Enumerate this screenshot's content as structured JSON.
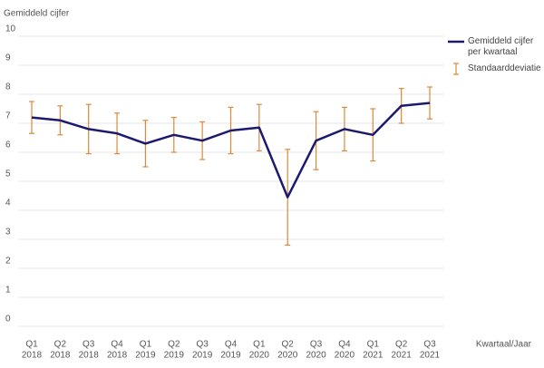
{
  "chart_data": {
    "type": "line",
    "y_label": "Gemiddeld cijfer",
    "x_label": "Kwartaal/Jaar",
    "categories": [
      [
        "Q1",
        "2018"
      ],
      [
        "Q2",
        "2018"
      ],
      [
        "Q3",
        "2018"
      ],
      [
        "Q4",
        "2018"
      ],
      [
        "Q1",
        "2019"
      ],
      [
        "Q2",
        "2019"
      ],
      [
        "Q3",
        "2019"
      ],
      [
        "Q4",
        "2019"
      ],
      [
        "Q1",
        "2020"
      ],
      [
        "Q2",
        "2020"
      ],
      [
        "Q3",
        "2020"
      ],
      [
        "Q4",
        "2020"
      ],
      [
        "Q1",
        "2021"
      ],
      [
        "Q2",
        "2021"
      ],
      [
        "Q3",
        "2021"
      ]
    ],
    "series": [
      {
        "name": "Gemiddeld cijfer per kwartaal",
        "color": "#1c1a6e",
        "values": [
          7.2,
          7.1,
          6.8,
          6.65,
          6.3,
          6.6,
          6.4,
          6.75,
          6.85,
          4.45,
          6.4,
          6.8,
          6.6,
          7.6,
          7.7
        ],
        "error_name": "Standaarddeviatie",
        "error_color": "#d9893a",
        "errors": [
          0.55,
          0.5,
          0.85,
          0.7,
          0.8,
          0.6,
          0.65,
          0.8,
          0.8,
          1.65,
          1.0,
          0.75,
          0.9,
          0.6,
          0.55
        ]
      }
    ],
    "ylim": [
      0,
      10
    ],
    "yticks": [
      0,
      1,
      2,
      3,
      4,
      5,
      6,
      7,
      8,
      9,
      10
    ],
    "grid": true
  }
}
